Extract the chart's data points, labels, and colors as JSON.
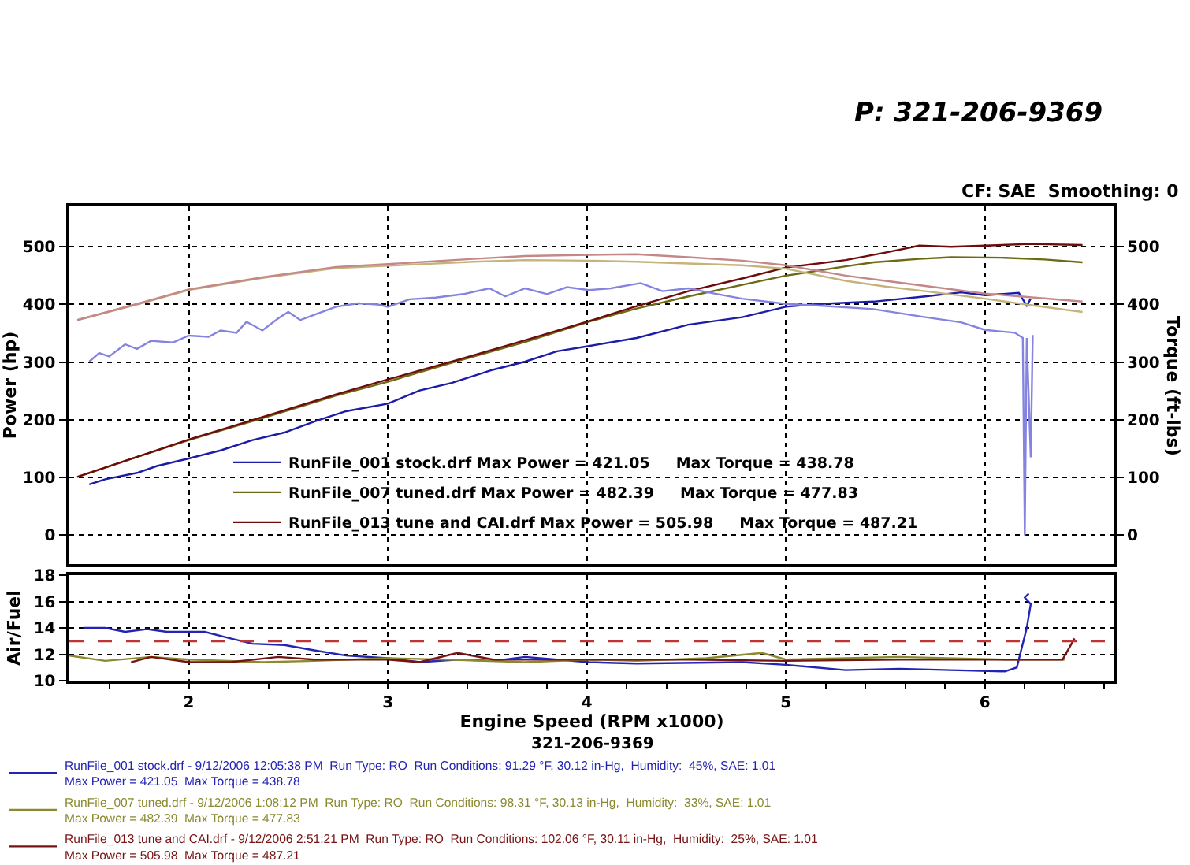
{
  "chart_data": [
    {
      "type": "line",
      "ylabel": "Power (hp)",
      "y2label": "Torque (ft-lbs)",
      "annotations": [
        "CF: SAE  Smoothing: 0",
        "P: 321-206-9369"
      ],
      "xlim": [
        1.4,
        6.65
      ],
      "xticks": [
        2,
        3,
        4,
        5,
        6
      ],
      "ylim": [
        -50,
        570
      ],
      "yticks": [
        0,
        100,
        200,
        300,
        400,
        500
      ],
      "y2lim": [
        -50,
        570
      ],
      "y2ticks": [
        0,
        100,
        200,
        300,
        400,
        500
      ],
      "tick_labels": "y",
      "grid": true,
      "legend": "bottom",
      "line_style": "solid",
      "series": [
        {
          "name": "RunFile_001 stock.drf Max Power = 421.05     Max Torque = 438.78",
          "color": "#1c1ca6",
          "x": [
            1.5,
            1.58,
            1.74,
            1.84,
            2.0,
            2.16,
            2.32,
            2.48,
            2.63,
            2.79,
            3.0,
            3.16,
            3.32,
            3.53,
            3.69,
            3.85,
            4.01,
            4.25,
            4.51,
            4.78,
            5.0,
            5.17,
            5.44,
            5.7,
            5.88,
            6.0,
            6.17,
            6.21,
            6.23
          ],
          "values": [
            88,
            97,
            108,
            120,
            133,
            147,
            165,
            178,
            197,
            215,
            228,
            251,
            264,
            287,
            301,
            319,
            328,
            342,
            365,
            378,
            396,
            401,
            405,
            414,
            421,
            416,
            420,
            398,
            410
          ]
        },
        {
          "name": "RunFile_007 tuned.drf Max Power = 482.39     Max Torque = 477.83",
          "color": "#6e6a14",
          "x": [
            1.44,
            1.7,
            2.0,
            2.37,
            2.74,
            3.0,
            3.37,
            3.69,
            4.01,
            4.25,
            4.51,
            4.78,
            5.0,
            5.3,
            5.44,
            5.67,
            5.83,
            6.1,
            6.3,
            6.49
          ],
          "values": [
            101,
            131,
            165,
            203,
            242,
            266,
            304,
            335,
            370,
            393,
            414,
            434,
            450,
            466,
            473,
            479,
            482,
            481,
            478,
            473
          ]
        },
        {
          "name": "RunFile_013 tune and CAI.drf Max Power = 505.98     Max Torque = 487.21",
          "color": "#6e0c0c",
          "x": [
            1.44,
            1.7,
            2.0,
            2.37,
            2.74,
            3.0,
            3.37,
            3.69,
            4.01,
            4.25,
            4.51,
            4.78,
            5.0,
            5.3,
            5.5,
            5.67,
            5.83,
            6.0,
            6.23,
            6.49
          ],
          "values": [
            101,
            131,
            166,
            205,
            244,
            270,
            306,
            338,
            371,
            397,
            423,
            445,
            464,
            477,
            490,
            502,
            500,
            502,
            505,
            503
          ]
        },
        {
          "color": "#8484e0",
          "axis": "y2",
          "x": [
            1.5,
            1.55,
            1.6,
            1.68,
            1.74,
            1.81,
            1.92,
            2.0,
            2.1,
            2.16,
            2.24,
            2.29,
            2.37,
            2.45,
            2.5,
            2.56,
            2.63,
            2.74,
            2.85,
            2.95,
            3.0,
            3.11,
            3.24,
            3.38,
            3.51,
            3.59,
            3.69,
            3.8,
            3.9,
            4.01,
            4.12,
            4.27,
            4.38,
            4.51,
            4.64,
            4.78,
            5.0,
            5.17,
            5.44,
            5.7,
            5.88,
            6.0,
            6.15,
            6.19,
            6.2,
            6.21,
            6.23,
            6.24
          ],
          "values": [
            301,
            316,
            310,
            331,
            323,
            337,
            334,
            346,
            344,
            355,
            351,
            370,
            355,
            376,
            387,
            373,
            382,
            396,
            402,
            400,
            396,
            409,
            412,
            418,
            428,
            414,
            428,
            418,
            430,
            425,
            428,
            437,
            423,
            428,
            419,
            410,
            401,
            398,
            392,
            378,
            369,
            356,
            351,
            342,
            0,
            342,
            135,
            347
          ]
        },
        {
          "color": "#c4b47c",
          "axis": "y2",
          "x": [
            1.44,
            1.74,
            2.0,
            2.37,
            2.74,
            3.0,
            3.43,
            3.69,
            4.01,
            4.25,
            4.51,
            4.78,
            5.0,
            5.3,
            5.5,
            5.7,
            6.0,
            6.25,
            6.49
          ],
          "values": [
            373,
            400,
            425,
            446,
            463,
            467,
            474,
            477,
            476,
            474,
            471,
            468,
            462,
            441,
            431,
            423,
            410,
            398,
            387
          ]
        },
        {
          "color": "#c48888",
          "axis": "y2",
          "x": [
            1.44,
            1.74,
            2.0,
            2.37,
            2.74,
            3.0,
            3.43,
            3.69,
            4.01,
            4.25,
            4.51,
            4.78,
            5.0,
            5.3,
            5.5,
            5.7,
            6.0,
            6.25,
            6.49
          ],
          "values": [
            373,
            401,
            426,
            447,
            465,
            470,
            479,
            484,
            486,
            487,
            482,
            476,
            468,
            450,
            441,
            432,
            419,
            412,
            405
          ]
        }
      ]
    },
    {
      "type": "line",
      "xlabel": "Engine Speed (RPM x1000)",
      "ylabel": "Air/Fuel",
      "annotations": [
        "321-206-9369"
      ],
      "xlim": [
        1.4,
        6.65
      ],
      "xticks": [
        {
          "value": 1.6,
          "label": null
        },
        {
          "value": 1.8,
          "label": null
        },
        2,
        {
          "value": 2.2,
          "label": null
        },
        {
          "value": 2.4,
          "label": null
        },
        {
          "value": 2.6,
          "label": null
        },
        {
          "value": 2.8,
          "label": null
        },
        3,
        {
          "value": 3.2,
          "label": null
        },
        {
          "value": 3.4,
          "label": null
        },
        {
          "value": 3.6,
          "label": null
        },
        {
          "value": 3.8,
          "label": null
        },
        4,
        {
          "value": 4.2,
          "label": null
        },
        {
          "value": 4.4,
          "label": null
        },
        {
          "value": 4.6,
          "label": null
        },
        {
          "value": 4.8,
          "label": null
        },
        5,
        {
          "value": 5.2,
          "label": null
        },
        {
          "value": 5.4,
          "label": null
        },
        {
          "value": 5.6,
          "label": null
        },
        {
          "value": 5.8,
          "label": null
        },
        6,
        {
          "value": 6.2,
          "label": null
        },
        {
          "value": 6.4,
          "label": null
        },
        {
          "value": 6.6,
          "label": null
        }
      ],
      "ylim": [
        10,
        18
      ],
      "yticks": [
        10,
        12,
        14,
        16,
        18
      ],
      "grid": true,
      "legend": "bottom",
      "line_style": "solid",
      "ref_lines": [
        {
          "axis": "y",
          "value": 13,
          "color": "#c03434",
          "line_style": "dashed"
        }
      ],
      "series": [
        {
          "name": "RunFile_001 stock.drf - 9/12/2006 12:05:38 PM  Run Type: RO  Run Conditions: 91.29 °F, 30.12 in-Hg,  Humidity:  45%, SAE: 1.01\nMax Power = 421.05  Max Torque = 438.78",
          "color": "#2424b4",
          "x": [
            1.47,
            1.58,
            1.68,
            1.79,
            1.89,
            2.08,
            2.21,
            2.32,
            2.48,
            2.63,
            2.79,
            3.0,
            3.16,
            3.35,
            3.53,
            3.69,
            3.85,
            4.01,
            4.25,
            4.78,
            5.0,
            5.3,
            5.57,
            5.83,
            6.1,
            6.16,
            6.21,
            6.23,
            6.2,
            6.22
          ],
          "values": [
            14.0,
            14.0,
            13.7,
            13.9,
            13.7,
            13.7,
            13.2,
            12.8,
            12.7,
            12.3,
            11.9,
            11.7,
            11.4,
            11.6,
            11.5,
            11.8,
            11.6,
            11.4,
            11.3,
            11.4,
            11.2,
            10.8,
            10.9,
            10.8,
            10.7,
            11.0,
            14.0,
            15.8,
            16.3,
            16.6
          ]
        },
        {
          "name": "RunFile_007 tuned.drf - 9/12/2006 1:08:12 PM  Run Type: RO  Run Conditions: 98.31 °F, 30.13 in-Hg,  Humidity:  33%, SAE: 1.01\nMax Power = 482.39  Max Torque = 477.83",
          "color": "#8c8a30",
          "x": [
            1.4,
            1.58,
            1.81,
            2.0,
            2.37,
            2.63,
            3.0,
            3.3,
            3.69,
            4.01,
            4.25,
            4.6,
            4.88,
            5.0,
            5.57,
            6.1,
            6.4
          ],
          "values": [
            11.9,
            11.5,
            11.8,
            11.6,
            11.4,
            11.5,
            11.7,
            11.6,
            11.4,
            11.6,
            11.5,
            11.7,
            12.1,
            11.6,
            11.8,
            11.6,
            11.6
          ]
        },
        {
          "name": "RunFile_013 tune and CAI.drf - 9/12/2006 2:51:21 PM  Run Type: RO  Run Conditions: 102.06 °F, 30.11 in-Hg,  Humidity:  25%, SAE: 1.01\nMax Power = 505.98  Max Torque = 487.21",
          "color": "#761414",
          "x": [
            1.71,
            1.81,
            2.0,
            2.21,
            2.45,
            2.63,
            3.0,
            3.16,
            3.35,
            3.53,
            3.8,
            4.01,
            4.51,
            5.0,
            5.57,
            6.1,
            6.39,
            6.45
          ],
          "values": [
            11.4,
            11.8,
            11.4,
            11.4,
            11.8,
            11.6,
            11.6,
            11.4,
            12.1,
            11.6,
            11.6,
            11.6,
            11.6,
            11.5,
            11.6,
            11.6,
            11.6,
            13.2
          ]
        }
      ]
    }
  ]
}
